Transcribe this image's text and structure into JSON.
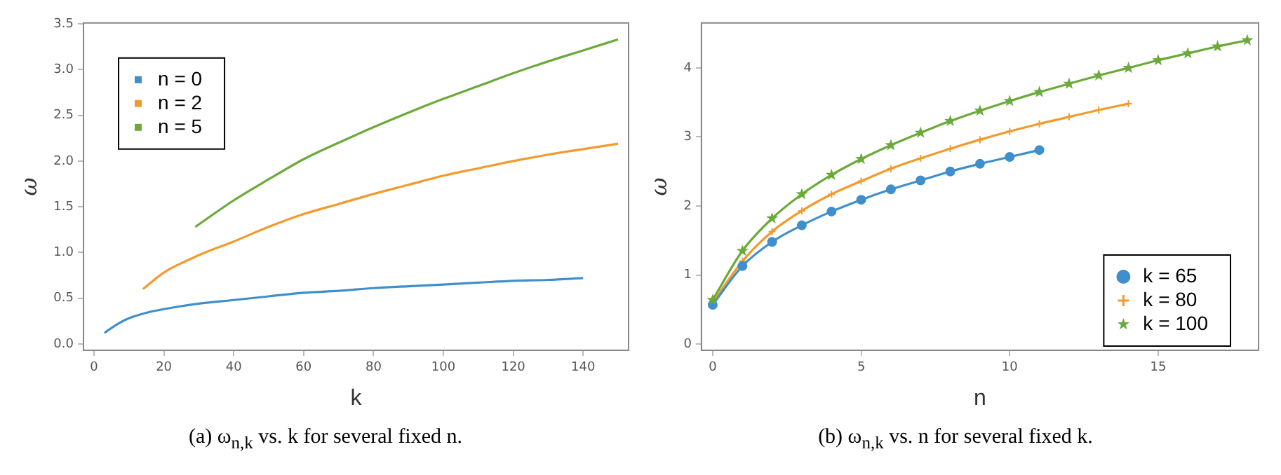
{
  "chart_data": [
    {
      "type": "line",
      "xlabel": "k",
      "ylabel": "ω",
      "xlim": [
        -3,
        153
      ],
      "xticks": [
        0,
        20,
        40,
        60,
        80,
        100,
        120,
        140
      ],
      "ylim": [
        -0.07,
        3.51
      ],
      "yticks": [
        {
          "value": 0,
          "label": "0.0"
        },
        {
          "value": 0.5,
          "label": "0.5"
        },
        {
          "value": 1,
          "label": "1.0"
        },
        {
          "value": 1.5,
          "label": "1.5"
        },
        {
          "value": 2,
          "label": "2.0"
        },
        {
          "value": 2.5,
          "label": "2.5"
        },
        {
          "value": 3,
          "label": "3.0"
        },
        {
          "value": 3.5,
          "label": "3.5"
        }
      ],
      "grid": false,
      "legend": "top left",
      "marker": "none",
      "annotations": [
        "(a) ω$_{n,k}$ vs. k for several fixed n."
      ],
      "series": [
        {
          "name": "n = 0",
          "color": "#3f8fcc",
          "x": [
            3,
            6,
            10,
            15,
            20,
            30,
            40,
            50,
            60,
            70,
            80,
            90,
            100,
            110,
            120,
            130,
            140
          ],
          "values": [
            0.12,
            0.2,
            0.28,
            0.34,
            0.38,
            0.44,
            0.48,
            0.52,
            0.56,
            0.58,
            0.61,
            0.63,
            0.65,
            0.67,
            0.69,
            0.7,
            0.72
          ]
        },
        {
          "name": "n = 2",
          "color": "#f39a2c",
          "x": [
            14,
            20,
            30,
            40,
            50,
            60,
            70,
            80,
            90,
            100,
            110,
            120,
            130,
            140,
            150
          ],
          "values": [
            0.6,
            0.78,
            0.97,
            1.12,
            1.28,
            1.42,
            1.53,
            1.64,
            1.74,
            1.84,
            1.92,
            2.0,
            2.07,
            2.13,
            2.19
          ]
        },
        {
          "name": "n = 5",
          "color": "#6aaa3a",
          "x": [
            29,
            40,
            50,
            60,
            70,
            80,
            90,
            100,
            110,
            120,
            130,
            140,
            150
          ],
          "values": [
            1.28,
            1.57,
            1.8,
            2.02,
            2.2,
            2.37,
            2.53,
            2.68,
            2.82,
            2.96,
            3.09,
            3.21,
            3.33
          ]
        }
      ]
    },
    {
      "type": "line",
      "xlabel": "n",
      "ylabel": "ω",
      "xlim": [
        -0.38,
        18.38
      ],
      "xticks": [
        0,
        5,
        10,
        15
      ],
      "ylim": [
        -0.09,
        4.65
      ],
      "yticks": [
        0,
        1,
        2,
        3,
        4
      ],
      "grid": false,
      "legend": "bottom right",
      "annotations": [
        "(b) ω$_{n,k}$ vs. n for several fixed k."
      ],
      "series": [
        {
          "name": "k = 65",
          "color": "#3f8fcc",
          "marker": "circle",
          "x": [
            0,
            1,
            2,
            3,
            4,
            5,
            6,
            7,
            8,
            9,
            10,
            11
          ],
          "values": [
            0.57,
            1.13,
            1.48,
            1.72,
            1.92,
            2.09,
            2.24,
            2.37,
            2.5,
            2.61,
            2.71,
            2.81
          ]
        },
        {
          "name": "k = 80",
          "color": "#f39a2c",
          "marker": "cross",
          "x": [
            0,
            1,
            2,
            3,
            4,
            5,
            6,
            7,
            8,
            9,
            10,
            11,
            12,
            13,
            14
          ],
          "values": [
            0.6,
            1.2,
            1.63,
            1.93,
            2.17,
            2.36,
            2.54,
            2.69,
            2.83,
            2.96,
            3.08,
            3.19,
            3.29,
            3.39,
            3.48
          ]
        },
        {
          "name": "k = 100",
          "color": "#6aaa3a",
          "marker": "star",
          "x": [
            0,
            1,
            2,
            3,
            4,
            5,
            6,
            7,
            8,
            9,
            10,
            11,
            12,
            13,
            14,
            15,
            16,
            17,
            18
          ],
          "values": [
            0.64,
            1.35,
            1.82,
            2.17,
            2.45,
            2.68,
            2.88,
            3.06,
            3.23,
            3.38,
            3.52,
            3.65,
            3.77,
            3.89,
            4.0,
            4.11,
            4.21,
            4.31,
            4.4
          ]
        }
      ]
    }
  ]
}
